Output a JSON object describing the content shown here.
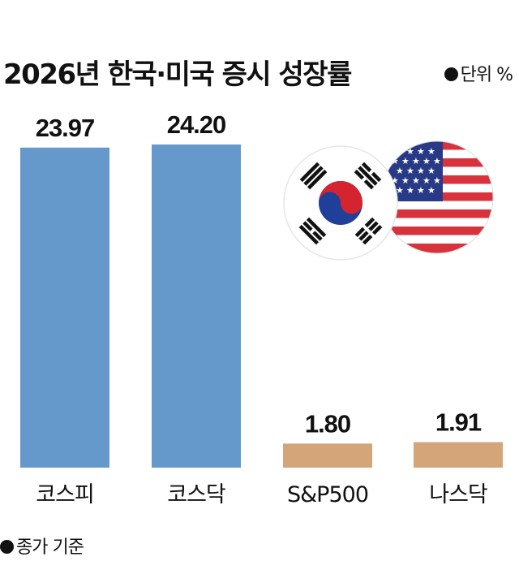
{
  "title": "2026년 한국·미국 증시 성장률",
  "unit_label": "단위 %",
  "note": "종가 기준",
  "colors": {
    "korea": "#6598cb",
    "us": "#d3a579"
  },
  "chart_data": {
    "type": "bar",
    "title": "2026년 한국·미국 증시 성장률",
    "ylabel": "",
    "categories": [
      "코스피",
      "코스닥",
      "S&P500",
      "나스닥"
    ],
    "values": [
      23.97,
      24.2,
      1.8,
      1.91
    ],
    "value_labels": [
      "23.97",
      "24.20",
      "1.80",
      "1.91"
    ],
    "bar_colors": [
      "#6598cb",
      "#6598cb",
      "#d3a579",
      "#d3a579"
    ],
    "ylim": [
      0,
      24.2
    ],
    "grid": false
  },
  "flags": [
    "korea-flag-icon",
    "us-flag-icon"
  ]
}
